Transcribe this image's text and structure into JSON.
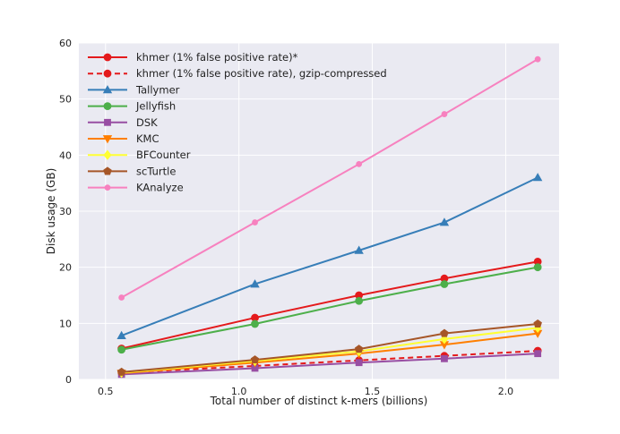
{
  "chart_data": {
    "type": "line",
    "title": "",
    "xlabel": "Total number of distinct k-mers (billions)",
    "ylabel": "Disk usage (GB)",
    "xlim": [
      0.4,
      2.2
    ],
    "ylim": [
      0,
      60
    ],
    "xticks": [
      0.5,
      1.0,
      1.5,
      2.0
    ],
    "xtick_labels": [
      "0.5",
      "1.0",
      "1.5",
      "2.0"
    ],
    "yticks": [
      0,
      10,
      20,
      30,
      40,
      50,
      60
    ],
    "ytick_labels": [
      "0",
      "10",
      "20",
      "30",
      "40",
      "50",
      "60"
    ],
    "grid": true,
    "legend_position": "top-left",
    "x": [
      0.56,
      1.06,
      1.45,
      1.77,
      2.12
    ],
    "series": [
      {
        "name": "khmer (1% false positive rate)*",
        "color": "#e41a1c",
        "marker": "circle",
        "dash": "solid",
        "values": [
          5.5,
          11,
          15,
          18,
          21
        ]
      },
      {
        "name": "khmer (1% false positive rate), gzip-compressed",
        "color": "#e41a1c",
        "marker": "circle",
        "dash": "dashed",
        "values": [
          1.2,
          2.4,
          3.4,
          4.2,
          5.1
        ]
      },
      {
        "name": "Tallymer",
        "color": "#377eb8",
        "marker": "triangle",
        "dash": "solid",
        "values": [
          7.8,
          17,
          23,
          28,
          36
        ]
      },
      {
        "name": "Jellyfish",
        "color": "#4daf4a",
        "marker": "circle",
        "dash": "solid",
        "values": [
          5.3,
          9.9,
          14,
          17,
          20
        ]
      },
      {
        "name": "DSK",
        "color": "#984ea3",
        "marker": "square",
        "dash": "solid",
        "values": [
          0.9,
          2.0,
          3.0,
          3.7,
          4.6
        ]
      },
      {
        "name": "KMC",
        "color": "#ff7f00",
        "marker": "triangle-down",
        "dash": "solid",
        "values": [
          1.1,
          3.0,
          4.6,
          6.2,
          8.2
        ]
      },
      {
        "name": "BFCounter",
        "color": "#ffff33",
        "marker": "diamond",
        "dash": "solid",
        "values": [
          1.2,
          3.3,
          5.0,
          7.2,
          9.2
        ]
      },
      {
        "name": "scTurtle",
        "color": "#a65628",
        "marker": "pentagon",
        "dash": "solid",
        "values": [
          1.3,
          3.5,
          5.4,
          8.2,
          9.9
        ]
      },
      {
        "name": "KAnalyze",
        "color": "#f781bf",
        "marker": "circle-small",
        "dash": "solid",
        "values": [
          14.6,
          28,
          38.4,
          47.3,
          57.1
        ]
      }
    ]
  }
}
